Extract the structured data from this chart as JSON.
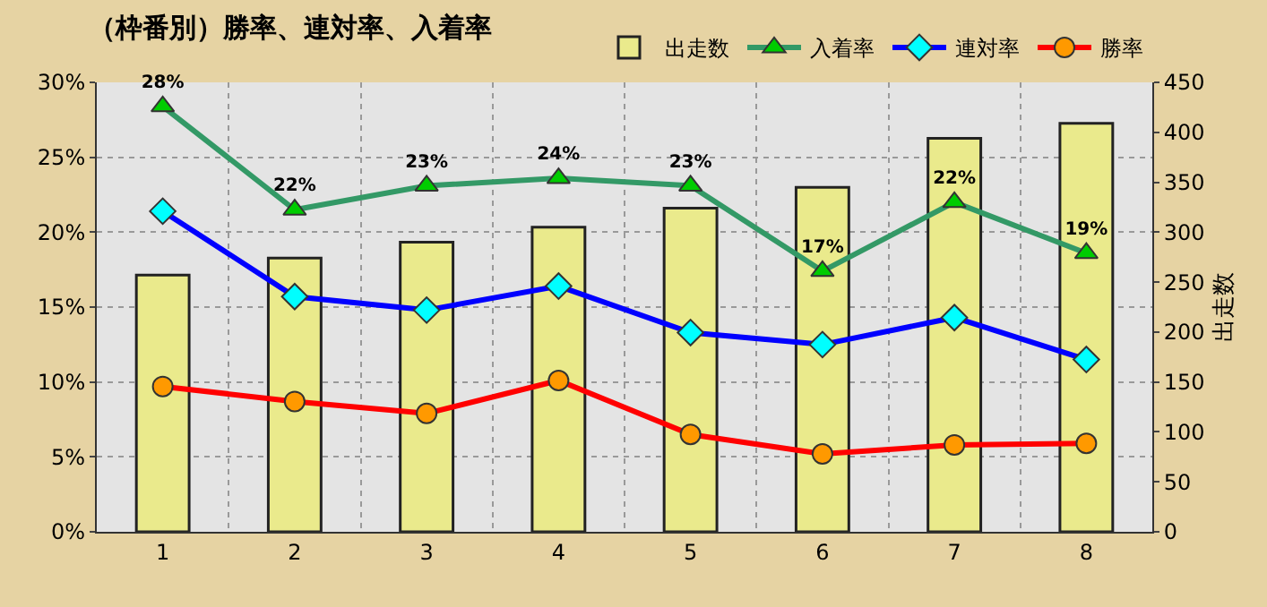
{
  "chart_data": {
    "type": "bar",
    "title": "（枠番別）勝率、連対率、入着率",
    "y2label": "出走数",
    "categories": [
      "1",
      "2",
      "3",
      "4",
      "5",
      "6",
      "7",
      "8"
    ],
    "series": [
      {
        "name": "出走数",
        "axis": "y2",
        "color": "#eaea8c",
        "values": [
          257,
          274,
          290,
          305,
          324,
          345,
          394,
          409
        ]
      },
      {
        "name": "入着率",
        "type": "line",
        "color": "#339966",
        "marker": "triangle",
        "values": [
          28.4,
          21.5,
          23.1,
          23.6,
          23.1,
          17.4,
          22.0,
          18.6
        ],
        "value_labels": [
          "28%",
          "22%",
          "23%",
          "24%",
          "23%",
          "17%",
          "22%",
          "19%"
        ]
      },
      {
        "name": "連対率",
        "type": "line",
        "color": "#0000ff",
        "marker": "diamond",
        "values": [
          21.4,
          15.7,
          14.8,
          16.4,
          13.3,
          12.5,
          14.3,
          11.5
        ]
      },
      {
        "name": "勝率",
        "type": "line",
        "color": "#ff0000",
        "marker": "circle",
        "values": [
          9.7,
          8.7,
          7.9,
          10.1,
          6.5,
          5.2,
          5.8,
          5.9
        ]
      }
    ],
    "ylim": [
      0,
      30
    ],
    "yticks": [
      {
        "value": 0,
        "label": "0%"
      },
      {
        "value": 5,
        "label": "5%"
      },
      {
        "value": 10,
        "label": "10%"
      },
      {
        "value": 15,
        "label": "15%"
      },
      {
        "value": 20,
        "label": "20%"
      },
      {
        "value": 25,
        "label": "25%"
      },
      {
        "value": 30,
        "label": "30%"
      }
    ],
    "y2lim": [
      0,
      450
    ],
    "y2ticks": [
      0,
      50,
      100,
      150,
      200,
      250,
      300,
      350,
      400,
      450
    ],
    "grid": true,
    "legend": "top right"
  }
}
